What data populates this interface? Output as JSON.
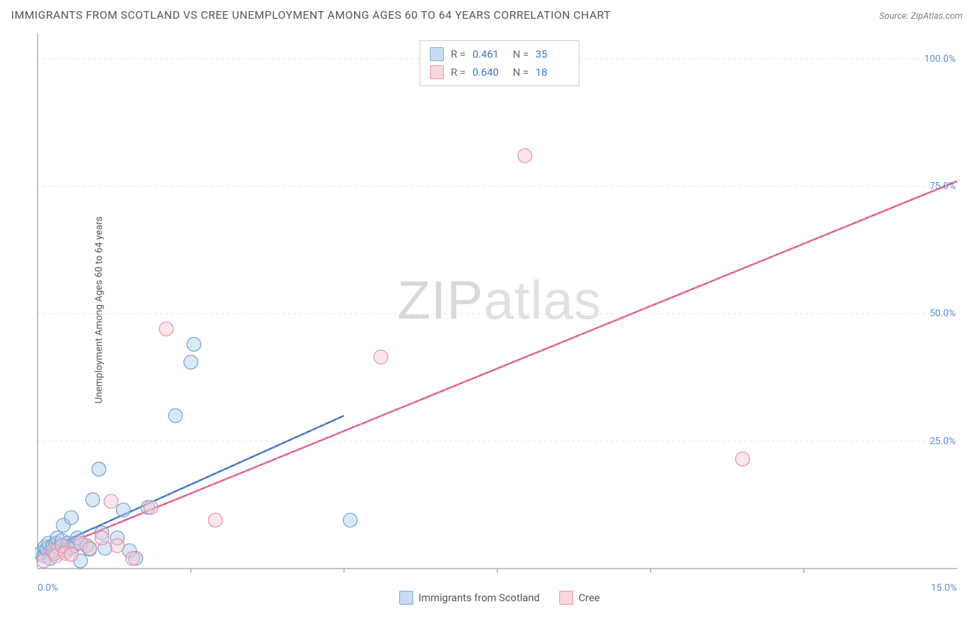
{
  "title": "IMMIGRANTS FROM SCOTLAND VS CREE UNEMPLOYMENT AMONG AGES 60 TO 64 YEARS CORRELATION CHART",
  "source": "Source: ZipAtlas.com",
  "ylabel": "Unemployment Among Ages 60 to 64 years",
  "watermark_a": "ZIP",
  "watermark_b": "atlas",
  "chart": {
    "type": "scatter",
    "background_color": "#ffffff",
    "grid_color": "#e5e5e5",
    "axis_color": "#888888",
    "text_color": "#555555",
    "tick_color": "#5b8fd6",
    "font_family": "Arial, sans-serif",
    "title_fontsize": 16,
    "label_fontsize": 14,
    "tick_fontsize": 14,
    "xlim": [
      0,
      15
    ],
    "ylim": [
      0,
      105
    ],
    "xticks": [
      0,
      15
    ],
    "xtick_labels": [
      "0.0%",
      "15.0%"
    ],
    "yticks": [
      25,
      50,
      75,
      100
    ],
    "ytick_labels": [
      "25.0%",
      "50.0%",
      "75.0%",
      "100.0%"
    ],
    "marker_radius": 10,
    "marker_opacity_fill": 0.45,
    "marker_stroke_width": 1.2,
    "trend_line_width": 2.5,
    "trend_dashed_overlay": "5,5"
  },
  "series": [
    {
      "name": "Immigrants from Scotland",
      "color_fill": "#aecde9",
      "color_stroke": "#6f9dd3",
      "line_color": "#3b6fc4",
      "R": "0.461",
      "N": "35",
      "points": [
        [
          0.05,
          3.0
        ],
        [
          0.1,
          2.5
        ],
        [
          0.12,
          4.2
        ],
        [
          0.15,
          3.8
        ],
        [
          0.18,
          5.0
        ],
        [
          0.2,
          2.0
        ],
        [
          0.25,
          4.5
        ],
        [
          0.28,
          3.0
        ],
        [
          0.3,
          5.0
        ],
        [
          0.32,
          6.0
        ],
        [
          0.35,
          4.0
        ],
        [
          0.4,
          5.5
        ],
        [
          0.42,
          8.5
        ],
        [
          0.45,
          3.5
        ],
        [
          0.5,
          5.0
        ],
        [
          0.55,
          10.0
        ],
        [
          0.55,
          4.0
        ],
        [
          0.6,
          4.5
        ],
        [
          0.65,
          6.0
        ],
        [
          0.8,
          4.5
        ],
        [
          0.85,
          3.8
        ],
        [
          0.9,
          13.5
        ],
        [
          1.0,
          19.5
        ],
        [
          1.05,
          7.0
        ],
        [
          1.1,
          4.0
        ],
        [
          1.3,
          6.0
        ],
        [
          1.4,
          11.5
        ],
        [
          1.5,
          3.5
        ],
        [
          1.6,
          2.0
        ],
        [
          1.8,
          12.0
        ],
        [
          2.25,
          30.0
        ],
        [
          2.5,
          40.5
        ],
        [
          2.55,
          44.0
        ],
        [
          5.1,
          9.5
        ],
        [
          0.7,
          1.5
        ]
      ],
      "trend": [
        [
          0.0,
          3.0
        ],
        [
          5.0,
          30.0
        ]
      ]
    },
    {
      "name": "Cree",
      "color_fill": "#f6c9d2",
      "color_stroke": "#e68aa2",
      "line_color": "#e05a86",
      "R": "0.640",
      "N": "18",
      "points": [
        [
          0.1,
          1.5
        ],
        [
          0.25,
          3.5
        ],
        [
          0.3,
          2.5
        ],
        [
          0.4,
          4.5
        ],
        [
          0.45,
          3.0
        ],
        [
          0.55,
          2.8
        ],
        [
          0.7,
          5.0
        ],
        [
          0.85,
          4.0
        ],
        [
          1.05,
          6.0
        ],
        [
          1.2,
          13.2
        ],
        [
          1.3,
          4.5
        ],
        [
          1.55,
          2.0
        ],
        [
          1.85,
          12.0
        ],
        [
          2.1,
          47.0
        ],
        [
          2.9,
          9.5
        ],
        [
          5.6,
          41.5
        ],
        [
          7.95,
          81.0
        ],
        [
          11.5,
          21.5
        ]
      ],
      "trend": [
        [
          0.0,
          2.5
        ],
        [
          15.0,
          76.0
        ]
      ]
    }
  ],
  "stats_labels": {
    "R": "R  =",
    "N": "N  ="
  },
  "legend_items": [
    "Immigrants from Scotland",
    "Cree"
  ]
}
